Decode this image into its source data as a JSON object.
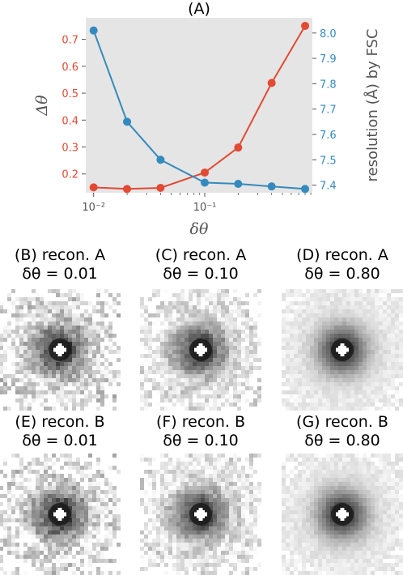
{
  "chart_data": {
    "type": "line",
    "title": "(A)",
    "xlabel": "δθ",
    "x_scale": "log",
    "x_ticks": [
      "10⁻²",
      "10⁻¹"
    ],
    "x": [
      0.01,
      0.02,
      0.04,
      0.1,
      0.2,
      0.4,
      0.8
    ],
    "series": [
      {
        "axis": "left",
        "ylabel": "Δθ",
        "color": "#e24a33",
        "ylim": [
          0.13,
          0.78
        ],
        "y_ticks": [
          "0.2",
          "0.3",
          "0.4",
          "0.5",
          "0.6",
          "0.7"
        ],
        "values": [
          0.15,
          0.144,
          0.148,
          0.205,
          0.298,
          0.538,
          0.75
        ]
      },
      {
        "axis": "right",
        "ylabel": "resolution (Å) by FSC",
        "color": "#348abd",
        "ylim": [
          7.37,
          8.06
        ],
        "y_ticks": [
          "7.4",
          "7.5",
          "7.6",
          "7.7",
          "7.8",
          "7.9",
          "8.0"
        ],
        "values": [
          8.01,
          7.65,
          7.5,
          7.41,
          7.405,
          7.395,
          7.385
        ]
      }
    ],
    "background": "#e5e5e5",
    "grid": false
  },
  "panels": [
    {
      "title": "(B) recon. A",
      "value": "δθ = 0.01"
    },
    {
      "title": "(C) recon. A",
      "value": "δθ = 0.10"
    },
    {
      "title": "(D) recon. A",
      "value": "δθ = 0.80"
    },
    {
      "title": "(E) recon. B",
      "value": "δθ = 0.01"
    },
    {
      "title": "(F) recon. B",
      "value": "δθ = 0.10"
    },
    {
      "title": "(G) recon. B",
      "value": "δθ = 0.80"
    }
  ]
}
